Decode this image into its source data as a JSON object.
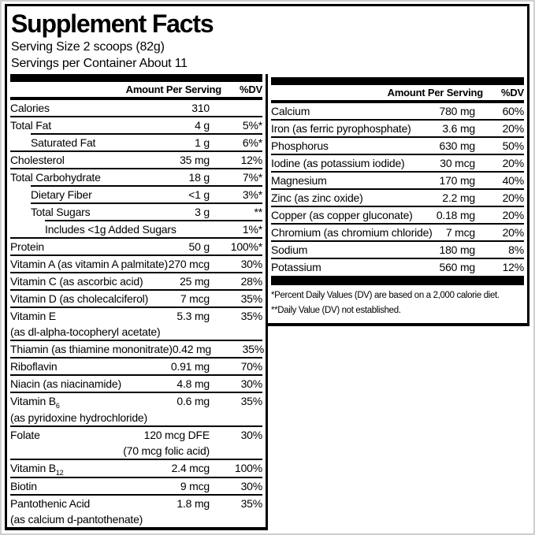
{
  "title": "Supplement Facts",
  "serving": {
    "size": "Serving Size 2 scoops (82g)",
    "per_container": "Servings per Container About 11"
  },
  "table_header": {
    "amount": "Amount Per Serving",
    "dv": "%DV"
  },
  "left_column": {
    "rows": [
      {
        "name": "Calories",
        "sub": "",
        "amount": "310",
        "dv": "",
        "indent": 0
      },
      {
        "name": "Total Fat",
        "sub": "",
        "amount": "4 g",
        "dv": "5%*",
        "indent": 0
      },
      {
        "name": "Saturated Fat",
        "sub": "",
        "amount": "1 g",
        "dv": "6%*",
        "indent": 1
      },
      {
        "name": "Cholesterol",
        "sub": "",
        "amount": "35 mg",
        "dv": "12%",
        "indent": 0
      },
      {
        "name": "Total Carbohydrate",
        "sub": "",
        "amount": "18 g",
        "dv": "7%*",
        "indent": 0
      },
      {
        "name": "Dietary Fiber",
        "sub": "",
        "amount": "<1 g",
        "dv": "3%*",
        "indent": 1
      },
      {
        "name": "Total Sugars",
        "sub": "",
        "amount": "3 g",
        "dv": "**",
        "indent": 1
      },
      {
        "name": "Includes <1g Added Sugars",
        "sub": "",
        "amount": "",
        "dv": "1%*",
        "indent": 2
      },
      {
        "name": "Protein",
        "sub": "",
        "amount": "50 g",
        "dv": "100%*",
        "indent": 0
      },
      {
        "name": "Vitamin A (as vitamin A palmitate)",
        "sub": "",
        "amount": "270 mcg",
        "dv": "30%",
        "indent": 0
      },
      {
        "name": "Vitamin C (as ascorbic acid)",
        "sub": "",
        "amount": "25 mg",
        "dv": "28%",
        "indent": 0
      },
      {
        "name": "Vitamin D (as cholecalciferol)",
        "sub": "",
        "amount": "7 mcg",
        "dv": "35%",
        "indent": 0
      },
      {
        "name": "Vitamin E",
        "sub": "",
        "amount": "5.3 mg",
        "dv": "35%",
        "indent": 0,
        "line2": "(as dl-alpha-tocopheryl acetate)",
        "line2_align": "left"
      },
      {
        "name": "Thiamin (as thiamine mononitrate)",
        "sub": "",
        "amount": "0.42 mg",
        "dv": "35%",
        "indent": 0
      },
      {
        "name": "Riboflavin",
        "sub": "",
        "amount": "0.91 mg",
        "dv": "70%",
        "indent": 0
      },
      {
        "name": "Niacin (as niacinamide)",
        "sub": "",
        "amount": "4.8 mg",
        "dv": "30%",
        "indent": 0
      },
      {
        "name": "Vitamin B",
        "sub": "6",
        "amount": "0.6 mg",
        "dv": "35%",
        "indent": 0,
        "line2": "(as pyridoxine hydrochloride)",
        "line2_align": "left"
      },
      {
        "name": "Folate",
        "sub": "",
        "amount": "120 mcg DFE",
        "dv": "30%",
        "indent": 0,
        "line2": "(70 mcg folic acid)",
        "line2_align": "amount"
      },
      {
        "name": "Vitamin B",
        "sub": "12",
        "amount": "2.4 mcg",
        "dv": "100%",
        "indent": 0
      },
      {
        "name": "Biotin",
        "sub": "",
        "amount": "9 mcg",
        "dv": "30%",
        "indent": 0
      },
      {
        "name": "Pantothenic Acid",
        "sub": "",
        "amount": "1.8 mg",
        "dv": "35%",
        "indent": 0,
        "line2": "(as calcium d-pantothenate)",
        "line2_align": "left"
      }
    ]
  },
  "right_column": {
    "rows": [
      {
        "name": "Calcium",
        "sub": "",
        "amount": "780 mg",
        "dv": "60%",
        "indent": 0
      },
      {
        "name": "Iron (as ferric pyrophosphate)",
        "sub": "",
        "amount": "3.6 mg",
        "dv": "20%",
        "indent": 0
      },
      {
        "name": "Phosphorus",
        "sub": "",
        "amount": "630 mg",
        "dv": "50%",
        "indent": 0
      },
      {
        "name": "Iodine (as potassium iodide)",
        "sub": "",
        "amount": "30 mcg",
        "dv": "20%",
        "indent": 0
      },
      {
        "name": "Magnesium",
        "sub": "",
        "amount": "170 mg",
        "dv": "40%",
        "indent": 0
      },
      {
        "name": "Zinc (as zinc oxide)",
        "sub": "",
        "amount": "2.2 mg",
        "dv": "20%",
        "indent": 0
      },
      {
        "name": "Copper (as copper gluconate)",
        "sub": "",
        "amount": "0.18 mg",
        "dv": "20%",
        "indent": 0
      },
      {
        "name": "Chromium (as chromium chloride)",
        "sub": "",
        "amount": "7 mcg",
        "dv": "20%",
        "indent": 0
      },
      {
        "name": "Sodium",
        "sub": "",
        "amount": "180 mg",
        "dv": "8%",
        "indent": 0
      },
      {
        "name": "Potassium",
        "sub": "",
        "amount": "560 mg",
        "dv": "12%",
        "indent": 0
      }
    ]
  },
  "footnotes": [
    "*Percent Daily Values (DV) are based on a 2,000 calorie diet.",
    "**Daily Value (DV) not established."
  ],
  "colors": {
    "ink": "#000000",
    "paper": "#ffffff",
    "frame": "#cfcfcf"
  }
}
